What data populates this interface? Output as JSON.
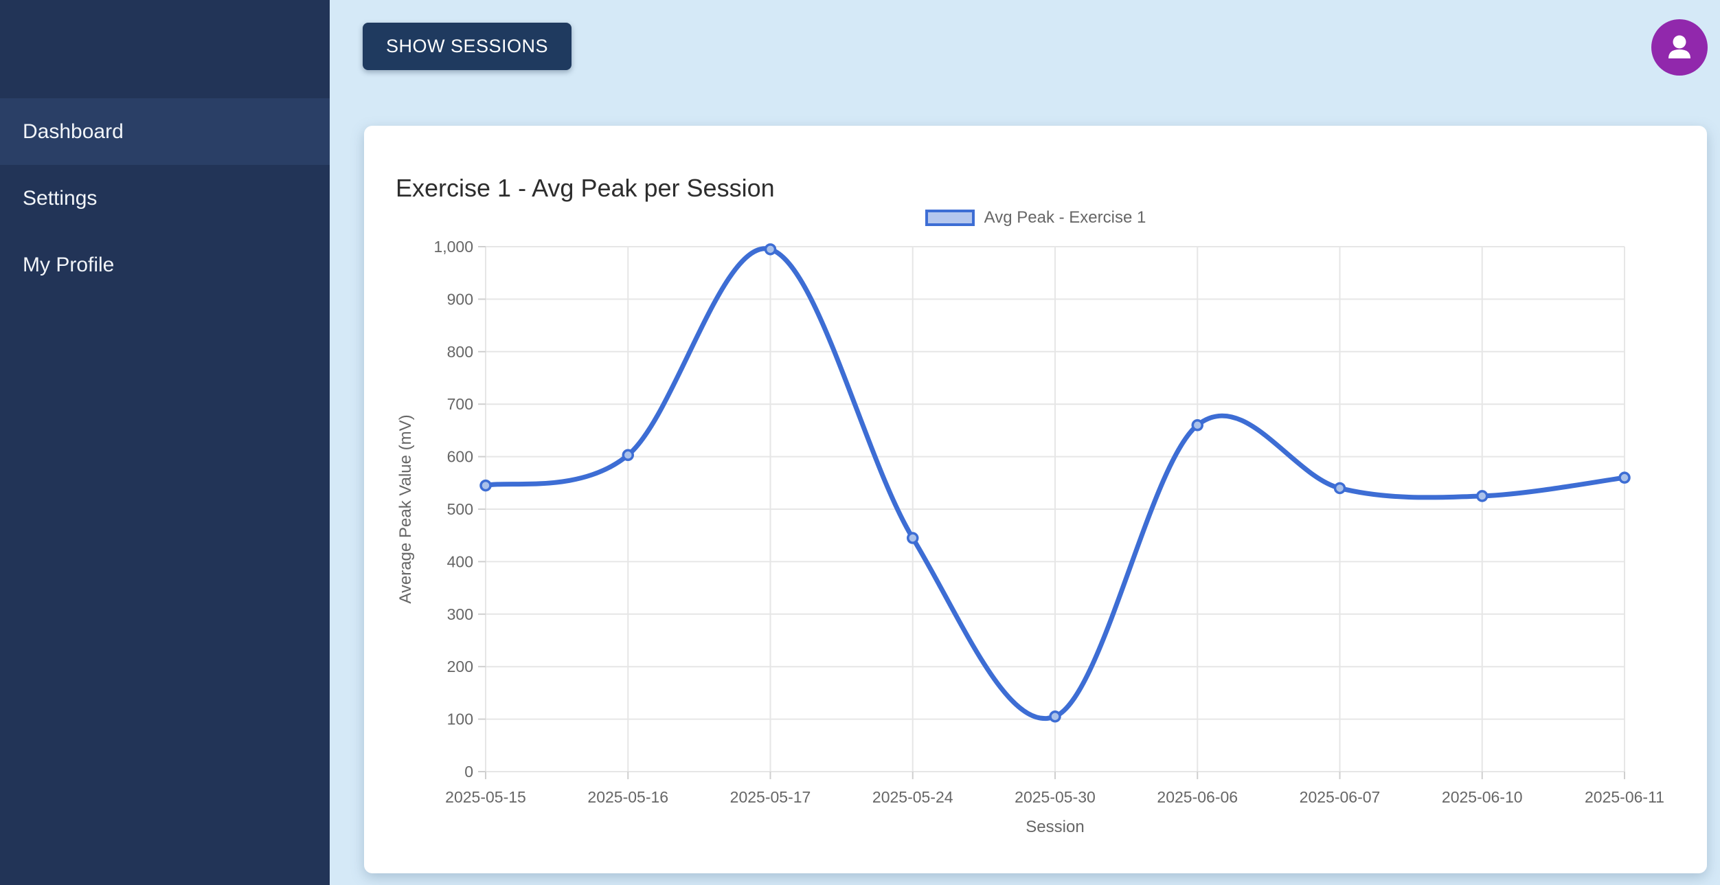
{
  "sidebar": {
    "items": [
      {
        "label": "Dashboard",
        "active": true
      },
      {
        "label": "Settings",
        "active": false
      },
      {
        "label": "My Profile",
        "active": false
      }
    ]
  },
  "topbar": {
    "show_sessions_label": "SHOW SESSIONS",
    "avatar_icon": "user-icon"
  },
  "card": {
    "title": "Exercise 1 - Avg Peak per Session"
  },
  "chart_data": {
    "type": "line",
    "title": "Exercise 1 - Avg Peak per Session",
    "categories": [
      "2025-05-15",
      "2025-05-16",
      "2025-05-17",
      "2025-05-24",
      "2025-05-30",
      "2025-06-06",
      "2025-06-07",
      "2025-06-10",
      "2025-06-11"
    ],
    "series": [
      {
        "name": "Avg Peak - Exercise 1",
        "values": [
          545,
          603,
          995,
          445,
          105,
          660,
          540,
          525,
          560
        ]
      }
    ],
    "xlabel": "Session",
    "ylabel": "Average Peak Value (mV)",
    "ylim": [
      0,
      1000
    ],
    "yticks": [
      0,
      100,
      200,
      300,
      400,
      500,
      600,
      700,
      800,
      900,
      1000
    ],
    "grid": true,
    "legend_position": "top-center",
    "line_smoothing": true
  },
  "colors": {
    "page_bg": "#d5e9f7",
    "sidebar_bg": "#223457",
    "sidebar_active": "#2a3f66",
    "navy": "#1f3a5f",
    "purple": "#9128ac",
    "muted": "#666666",
    "grid": "#e6e6e6",
    "axis": "#cfcfcf",
    "line": "#3d6dd4",
    "point_fill": "#aac1ea",
    "legend_fill": "#b5c7ee"
  }
}
